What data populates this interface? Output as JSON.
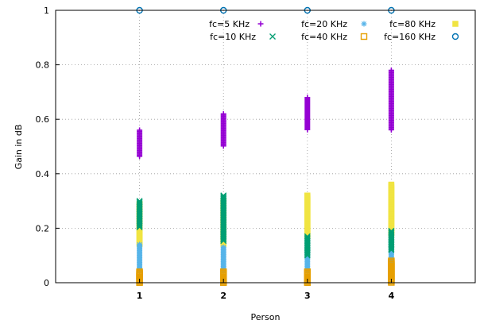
{
  "chart_data": {
    "type": "scatter",
    "title": "",
    "xlabel": "Person",
    "ylabel": "Gain in dB",
    "xlim": [
      0,
      5
    ],
    "ylim": [
      0,
      1
    ],
    "x_ticks": [
      "1",
      "2",
      "3",
      "4"
    ],
    "y_ticks": [
      "0",
      "0.2",
      "0.4",
      "0.6",
      "0.8",
      "1"
    ],
    "grid": true,
    "legend_position": "top-right",
    "series": [
      {
        "name": "fc=5 KHz",
        "marker": "plus",
        "color": "#9400d3",
        "ranges": [
          {
            "x": 1,
            "ymin": 0.46,
            "ymax": 0.56
          },
          {
            "x": 2,
            "ymin": 0.5,
            "ymax": 0.62
          },
          {
            "x": 3,
            "ymin": 0.56,
            "ymax": 0.68
          },
          {
            "x": 4,
            "ymin": 0.56,
            "ymax": 0.78
          }
        ]
      },
      {
        "name": "fc=10 KHz",
        "marker": "cross",
        "color": "#009e73",
        "ranges": [
          {
            "x": 1,
            "ymin": 0.2,
            "ymax": 0.3
          },
          {
            "x": 2,
            "ymin": 0.15,
            "ymax": 0.32
          },
          {
            "x": 3,
            "ymin": 0.1,
            "ymax": 0.17
          },
          {
            "x": 4,
            "ymin": 0.12,
            "ymax": 0.19
          }
        ]
      },
      {
        "name": "fc=20 KHz",
        "marker": "star",
        "color": "#56b4e9",
        "ranges": [
          {
            "x": 1,
            "ymin": 0.04,
            "ymax": 0.14
          },
          {
            "x": 2,
            "ymin": 0.04,
            "ymax": 0.13
          },
          {
            "x": 3,
            "ymin": 0.04,
            "ymax": 0.13
          },
          {
            "x": 4,
            "ymin": 0.06,
            "ymax": 0.16
          }
        ]
      },
      {
        "name": "fc=40 KHz",
        "marker": "open-square",
        "color": "#e69f00",
        "ranges": [
          {
            "x": 1,
            "ymin": 0.0,
            "ymax": 0.04
          },
          {
            "x": 2,
            "ymin": 0.0,
            "ymax": 0.04
          },
          {
            "x": 3,
            "ymin": 0.0,
            "ymax": 0.04
          },
          {
            "x": 4,
            "ymin": 0.0,
            "ymax": 0.08
          }
        ]
      },
      {
        "name": "fc=80 KHz",
        "marker": "filled-square",
        "color": "#f0e442",
        "ranges": [
          {
            "x": 1,
            "ymin": 0.14,
            "ymax": 0.29
          },
          {
            "x": 2,
            "ymin": 0.14,
            "ymax": 0.3
          },
          {
            "x": 3,
            "ymin": 0.17,
            "ymax": 0.32
          },
          {
            "x": 4,
            "ymin": 0.18,
            "ymax": 0.36
          }
        ]
      },
      {
        "name": "fc=160 KHz",
        "marker": "open-circle",
        "color": "#0072b2",
        "ranges": [
          {
            "x": 1,
            "ymin": 1.0,
            "ymax": 1.0
          },
          {
            "x": 2,
            "ymin": 1.0,
            "ymax": 1.0
          },
          {
            "x": 3,
            "ymin": 1.0,
            "ymax": 1.0
          },
          {
            "x": 4,
            "ymin": 1.0,
            "ymax": 1.0
          }
        ]
      }
    ]
  }
}
